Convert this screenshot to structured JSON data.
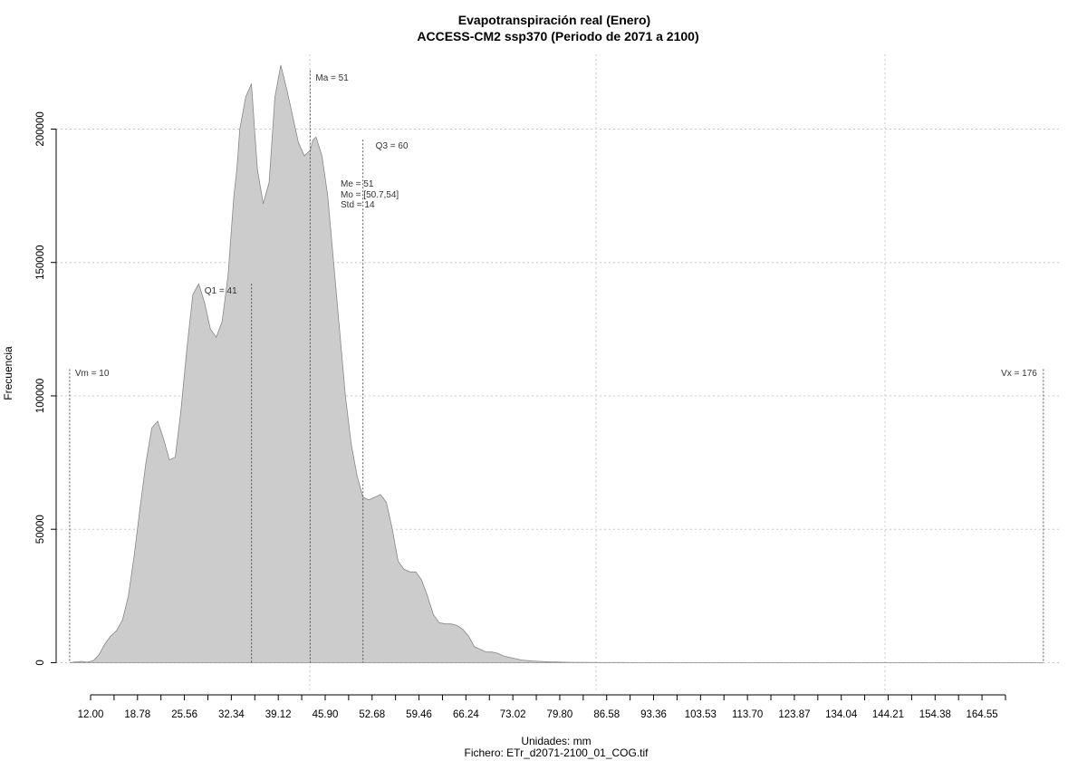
{
  "chart_data": {
    "type": "area",
    "title": "Evapotranspiración real (Enero)",
    "subtitle": "ACCESS-CM2 ssp370 (Periodo de 2071 a 2100)",
    "xlabel": "Unidades: mm",
    "file_label": "Fichero: ETr_d2071-2100_01_COG.tif",
    "ylabel": "Frecuencia",
    "xlim": [
      7.7,
      178.8
    ],
    "ylim": [
      -8000,
      228000
    ],
    "grid": true,
    "x_tick_labels": [
      "12.00",
      "18.78",
      "25.56",
      "32.34",
      "39.12",
      "45.90",
      "52.68",
      "59.46",
      "66.24",
      "73.02",
      "79.80",
      "86.58",
      "93.36",
      "103.53",
      "113.70",
      "123.87",
      "134.04",
      "144.21",
      "154.38",
      "164.55"
    ],
    "y_ticks": [
      0,
      50000,
      100000,
      150000,
      200000
    ],
    "y_tick_labels": [
      "0",
      "50000",
      "100000",
      "150000",
      "200000"
    ],
    "series": [
      {
        "x": [
          10.0,
          11.0,
          12.0,
          13.0,
          14.0,
          15.0,
          16.0,
          17.0,
          18.0,
          19.0,
          20.0,
          21.0,
          22.0,
          23.0,
          24.0,
          25.0,
          26.0,
          27.0,
          28.0,
          29.0,
          30.0,
          31.0,
          32.0,
          33.0,
          34.0,
          35.0,
          36.0,
          37.0,
          38.0,
          38.5,
          39.0,
          40.0,
          41.0,
          42.0,
          43.0,
          44.0,
          45.0,
          46.0,
          47.0,
          48.0,
          49.0,
          50.0,
          51.0,
          51.5,
          52.0,
          53.0,
          54.0,
          55.0,
          56.0,
          57.0,
          58.0,
          59.0,
          60.0,
          61.0,
          62.0,
          63.0,
          64.0,
          65.0,
          66.0,
          67.0,
          68.0,
          69.0,
          70.0,
          71.0,
          72.0,
          73.0,
          74.0,
          75.0,
          76.0,
          77.0,
          78.0,
          79.0,
          80.0,
          81.0,
          82.0,
          83.0,
          84.0,
          85.0,
          86.0,
          87.0,
          88.0,
          89.0,
          90.0,
          91.0,
          92.0,
          93.0,
          94.0,
          95.0,
          96.0,
          97.0,
          98.0,
          100.0,
          102.0,
          104.0,
          106.0,
          108.0,
          110.0,
          112.0,
          115.0,
          120.0,
          125.0,
          130.0,
          140.0,
          150.0,
          160.0,
          170.0,
          176.0
        ],
        "y": [
          0,
          300,
          500,
          200,
          700,
          3000,
          7000,
          10000,
          12000,
          16000,
          25000,
          40000,
          58000,
          75000,
          88000,
          90500,
          84000,
          76000,
          77000,
          95000,
          118000,
          138000,
          142000,
          135000,
          125000,
          122000,
          128000,
          145000,
          175000,
          185000,
          200000,
          212000,
          217000,
          185000,
          172000,
          180000,
          212000,
          224000,
          215000,
          205000,
          195000,
          190000,
          192000,
          196000,
          197000,
          190000,
          175000,
          150000,
          125000,
          100000,
          82000,
          70000,
          62000,
          61000,
          62000,
          63000,
          60000,
          50000,
          38000,
          35000,
          34000,
          34000,
          31000,
          25000,
          18000,
          15000,
          14500,
          14500,
          14000,
          12500,
          10000,
          6000,
          5000,
          4000,
          4000,
          3500,
          2500,
          2000,
          1500,
          1000,
          800,
          600,
          500,
          400,
          300,
          250,
          200,
          150,
          120,
          100,
          80,
          60,
          50,
          40,
          30,
          20,
          10,
          0,
          0,
          0,
          0,
          0,
          0,
          0,
          0,
          0,
          0
        ]
      }
    ],
    "annotations": {
      "vm": "Vm = 10",
      "vx": "Vx = 176",
      "q1": "Q1 = 41",
      "q3": "Q3 = 60",
      "ma": "Ma = 51",
      "me": "Me = 51",
      "mo": "Mo = [50.7,54]",
      "std": "Std = 14"
    },
    "markers": {
      "vm": 10,
      "vx": 176,
      "q1": 41,
      "q3": 60,
      "ma": 51
    },
    "fill_color": "#cccccc",
    "line_color": "#888888"
  }
}
